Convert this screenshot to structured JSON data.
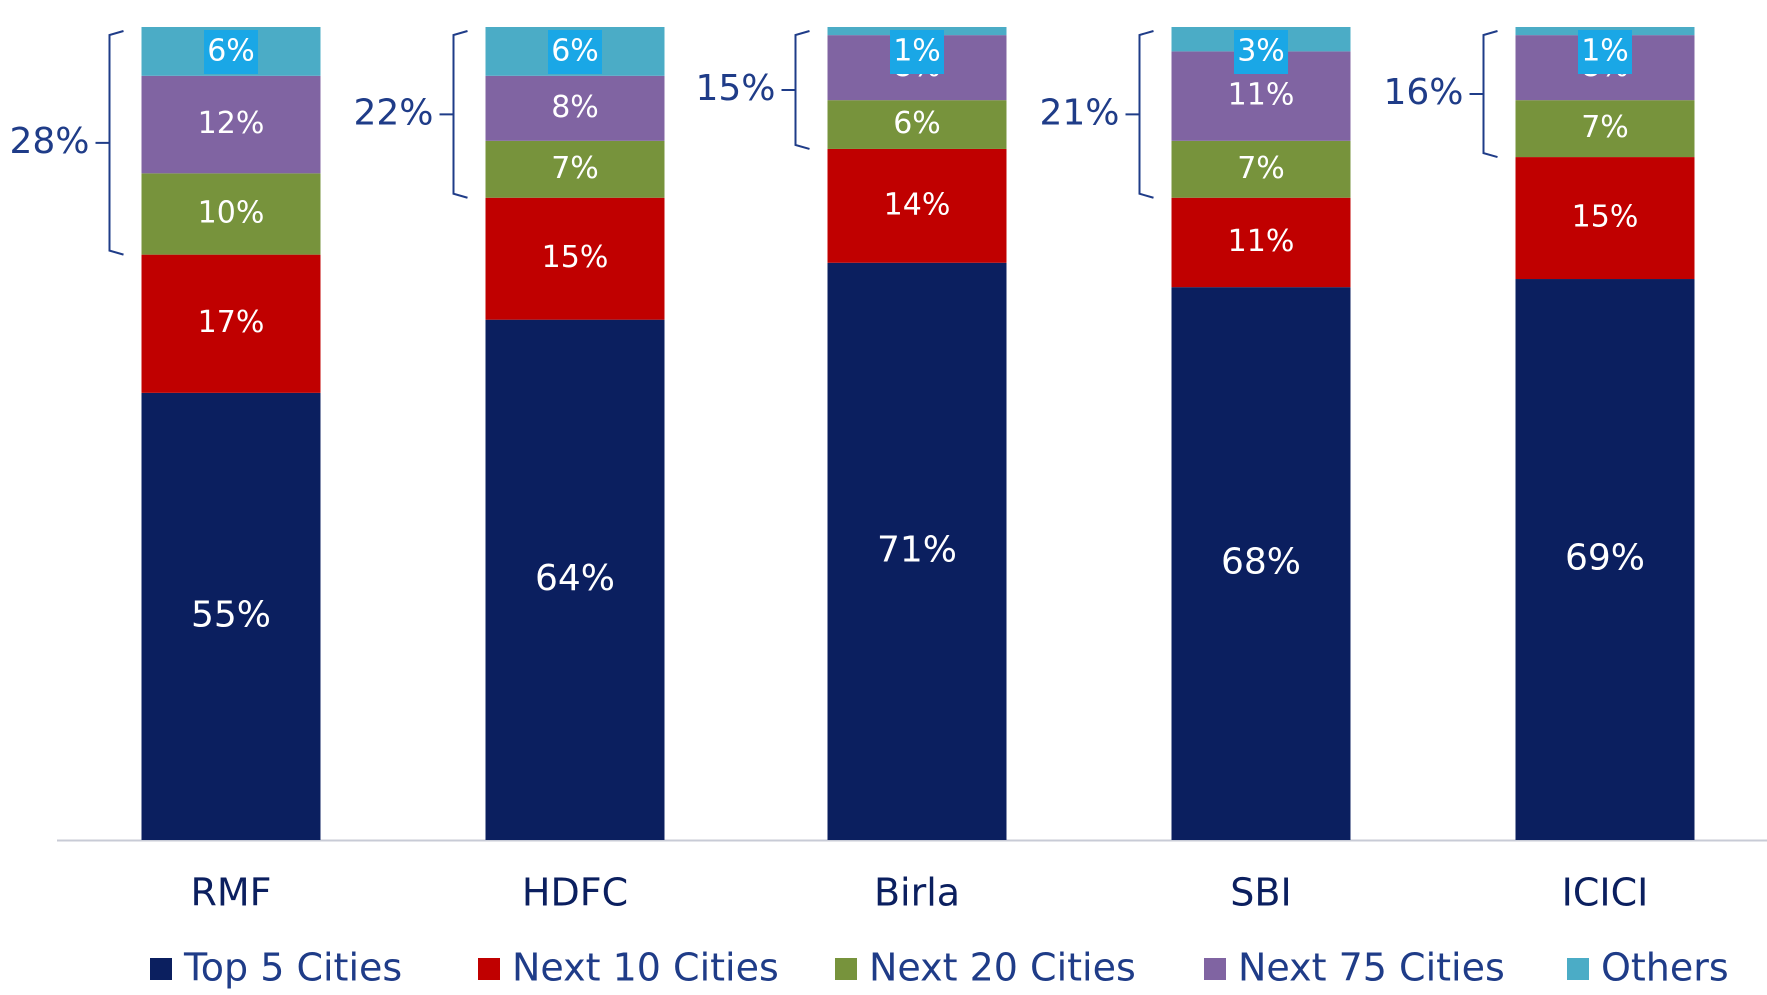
{
  "chart_data": {
    "type": "stacked_bar",
    "categories": [
      "RMF",
      "HDFC",
      "Birla",
      "SBI",
      "ICICI"
    ],
    "series": [
      {
        "name": "Top 5 Cities",
        "color": "#0b1f5f",
        "values": [
          55,
          64,
          71,
          68,
          69
        ],
        "value_labels": [
          "55%",
          "64%",
          "71%",
          "68%",
          "69%"
        ]
      },
      {
        "name": "Next 10 Cities",
        "color": "#c00000",
        "values": [
          17,
          15,
          14,
          11,
          15
        ],
        "value_labels": [
          "17%",
          "15%",
          "14%",
          "11%",
          "15%"
        ]
      },
      {
        "name": "Next 20 Cities",
        "color": "#77933c",
        "values": [
          10,
          7,
          6,
          7,
          7
        ],
        "value_labels": [
          "10%",
          "7%",
          "6%",
          "7%",
          "7%"
        ]
      },
      {
        "name": "Next 75 Cities",
        "color": "#8064a2",
        "values": [
          12,
          8,
          8,
          11,
          8
        ],
        "value_labels": [
          "12%",
          "8%",
          "8%",
          "11%",
          "8%"
        ]
      },
      {
        "name": "Others",
        "color": "#4bacc6",
        "values": [
          6,
          6,
          1,
          3,
          1
        ],
        "value_labels": [
          "6%",
          "6%",
          "1%",
          "3%",
          "1%"
        ]
      }
    ],
    "group_labels": [
      "28%",
      "22%",
      "15%",
      "21%",
      "16%"
    ],
    "ylim": [
      0,
      100
    ],
    "legend": "bottom"
  }
}
